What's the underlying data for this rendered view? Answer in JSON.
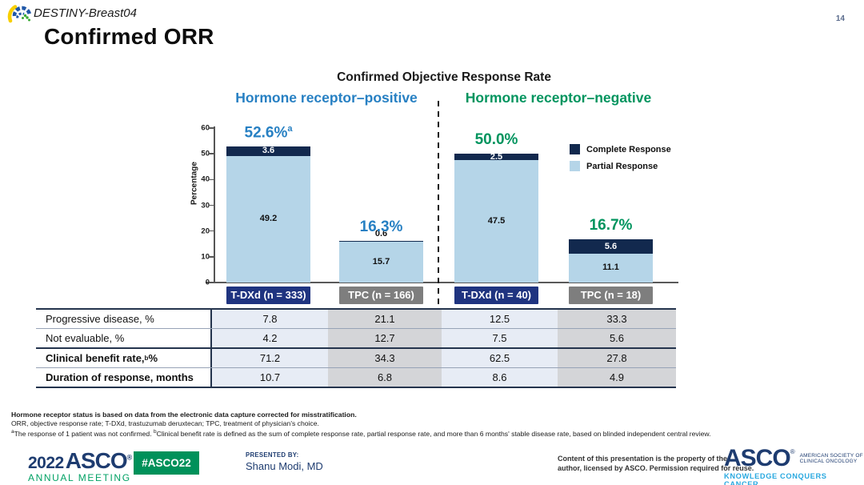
{
  "header": {
    "study": "DESTINY-Breast04",
    "page_number": "14",
    "title": "Confirmed ORR"
  },
  "chart_data": {
    "type": "bar",
    "stacked": true,
    "title": "Confirmed Objective Response Rate",
    "ylabel": "Percentage",
    "ylim": [
      0,
      60
    ],
    "yticks": [
      0,
      10,
      20,
      30,
      40,
      50,
      60
    ],
    "legend_position": "top-right",
    "legend": [
      {
        "label": "Complete Response",
        "color": "#12294E"
      },
      {
        "label": "Partial Response",
        "color": "#B5D5E8"
      }
    ],
    "groups": [
      {
        "label": "Hormone receptor–positive",
        "color": "#2780C3",
        "bars": [
          {
            "category": "T-DXd (n = 333)",
            "box_color": "#1F3480",
            "partial": 49.2,
            "complete": 3.6,
            "total_label": "52.6%",
            "total_sup": "a"
          },
          {
            "category": "TPC (n = 166)",
            "box_color": "#7E7E7E",
            "partial": 15.7,
            "complete": 0.6,
            "total_label": "16.3%",
            "total_sup": ""
          }
        ]
      },
      {
        "label": "Hormone receptor–negative",
        "color": "#00945E",
        "bars": [
          {
            "category": "T-DXd (n = 40)",
            "box_color": "#1F3480",
            "partial": 47.5,
            "complete": 2.5,
            "total_label": "50.0%",
            "total_sup": ""
          },
          {
            "category": "TPC (n = 18)",
            "box_color": "#7E7E7E",
            "partial": 11.1,
            "complete": 5.6,
            "total_label": "16.7%",
            "total_sup": ""
          }
        ]
      }
    ],
    "segment_colors": {
      "complete": "#12294E",
      "partial": "#B5D5E8"
    }
  },
  "table": {
    "rows": [
      {
        "label": "Progressive disease, %",
        "sup": "",
        "label_suffix": "",
        "bold": false,
        "values": [
          "7.8",
          "21.1",
          "12.5",
          "33.3"
        ]
      },
      {
        "label": "Not evaluable, %",
        "sup": "",
        "label_suffix": "",
        "bold": false,
        "values": [
          "4.2",
          "12.7",
          "7.5",
          "5.6"
        ]
      },
      {
        "label": "Clinical benefit rate,",
        "sup": "b",
        "label_suffix": " %",
        "bold": true,
        "values": [
          "71.2",
          "34.3",
          "62.5",
          "27.8"
        ]
      },
      {
        "label": "Duration of response, months",
        "sup": "",
        "label_suffix": "",
        "bold": true,
        "values": [
          "10.7",
          "6.8",
          "8.6",
          "4.9"
        ]
      }
    ]
  },
  "footnotes": {
    "line1": "Hormone receptor status is based on data from the electronic data capture corrected for misstratification.",
    "line2": "ORR, objective response rate; T-DXd, trastuzumab deruxtecan; TPC, treatment of physician's choice.",
    "line3_parts": [
      {
        "sup": "a",
        "text": "The response of 1 patient was not confirmed. "
      },
      {
        "sup": "b",
        "text": "Clinical benefit rate is defined as the sum of complete response rate, partial response rate, and more than 6 months' stable disease rate, based on blinded independent central review."
      }
    ]
  },
  "footer": {
    "meeting_year": "2022",
    "meeting_org": "ASCO",
    "reg_mark": "®",
    "meeting_name": "ANNUAL MEETING",
    "hashtag": "#ASCO22",
    "presented_by_label": "PRESENTED BY:",
    "presenter": "Shanu Modi, MD",
    "rights_line1": "Content of this presentation is the property of the",
    "rights_line2": "author, licensed by ASCO. Permission required for reuse.",
    "asco_logo_text": "ASCO",
    "asco_org_line1": "AMERICAN SOCIETY OF",
    "asco_org_line2": "CLINICAL ONCOLOGY",
    "asco_tagline": "KNOWLEDGE CONQUERS CANCER"
  }
}
